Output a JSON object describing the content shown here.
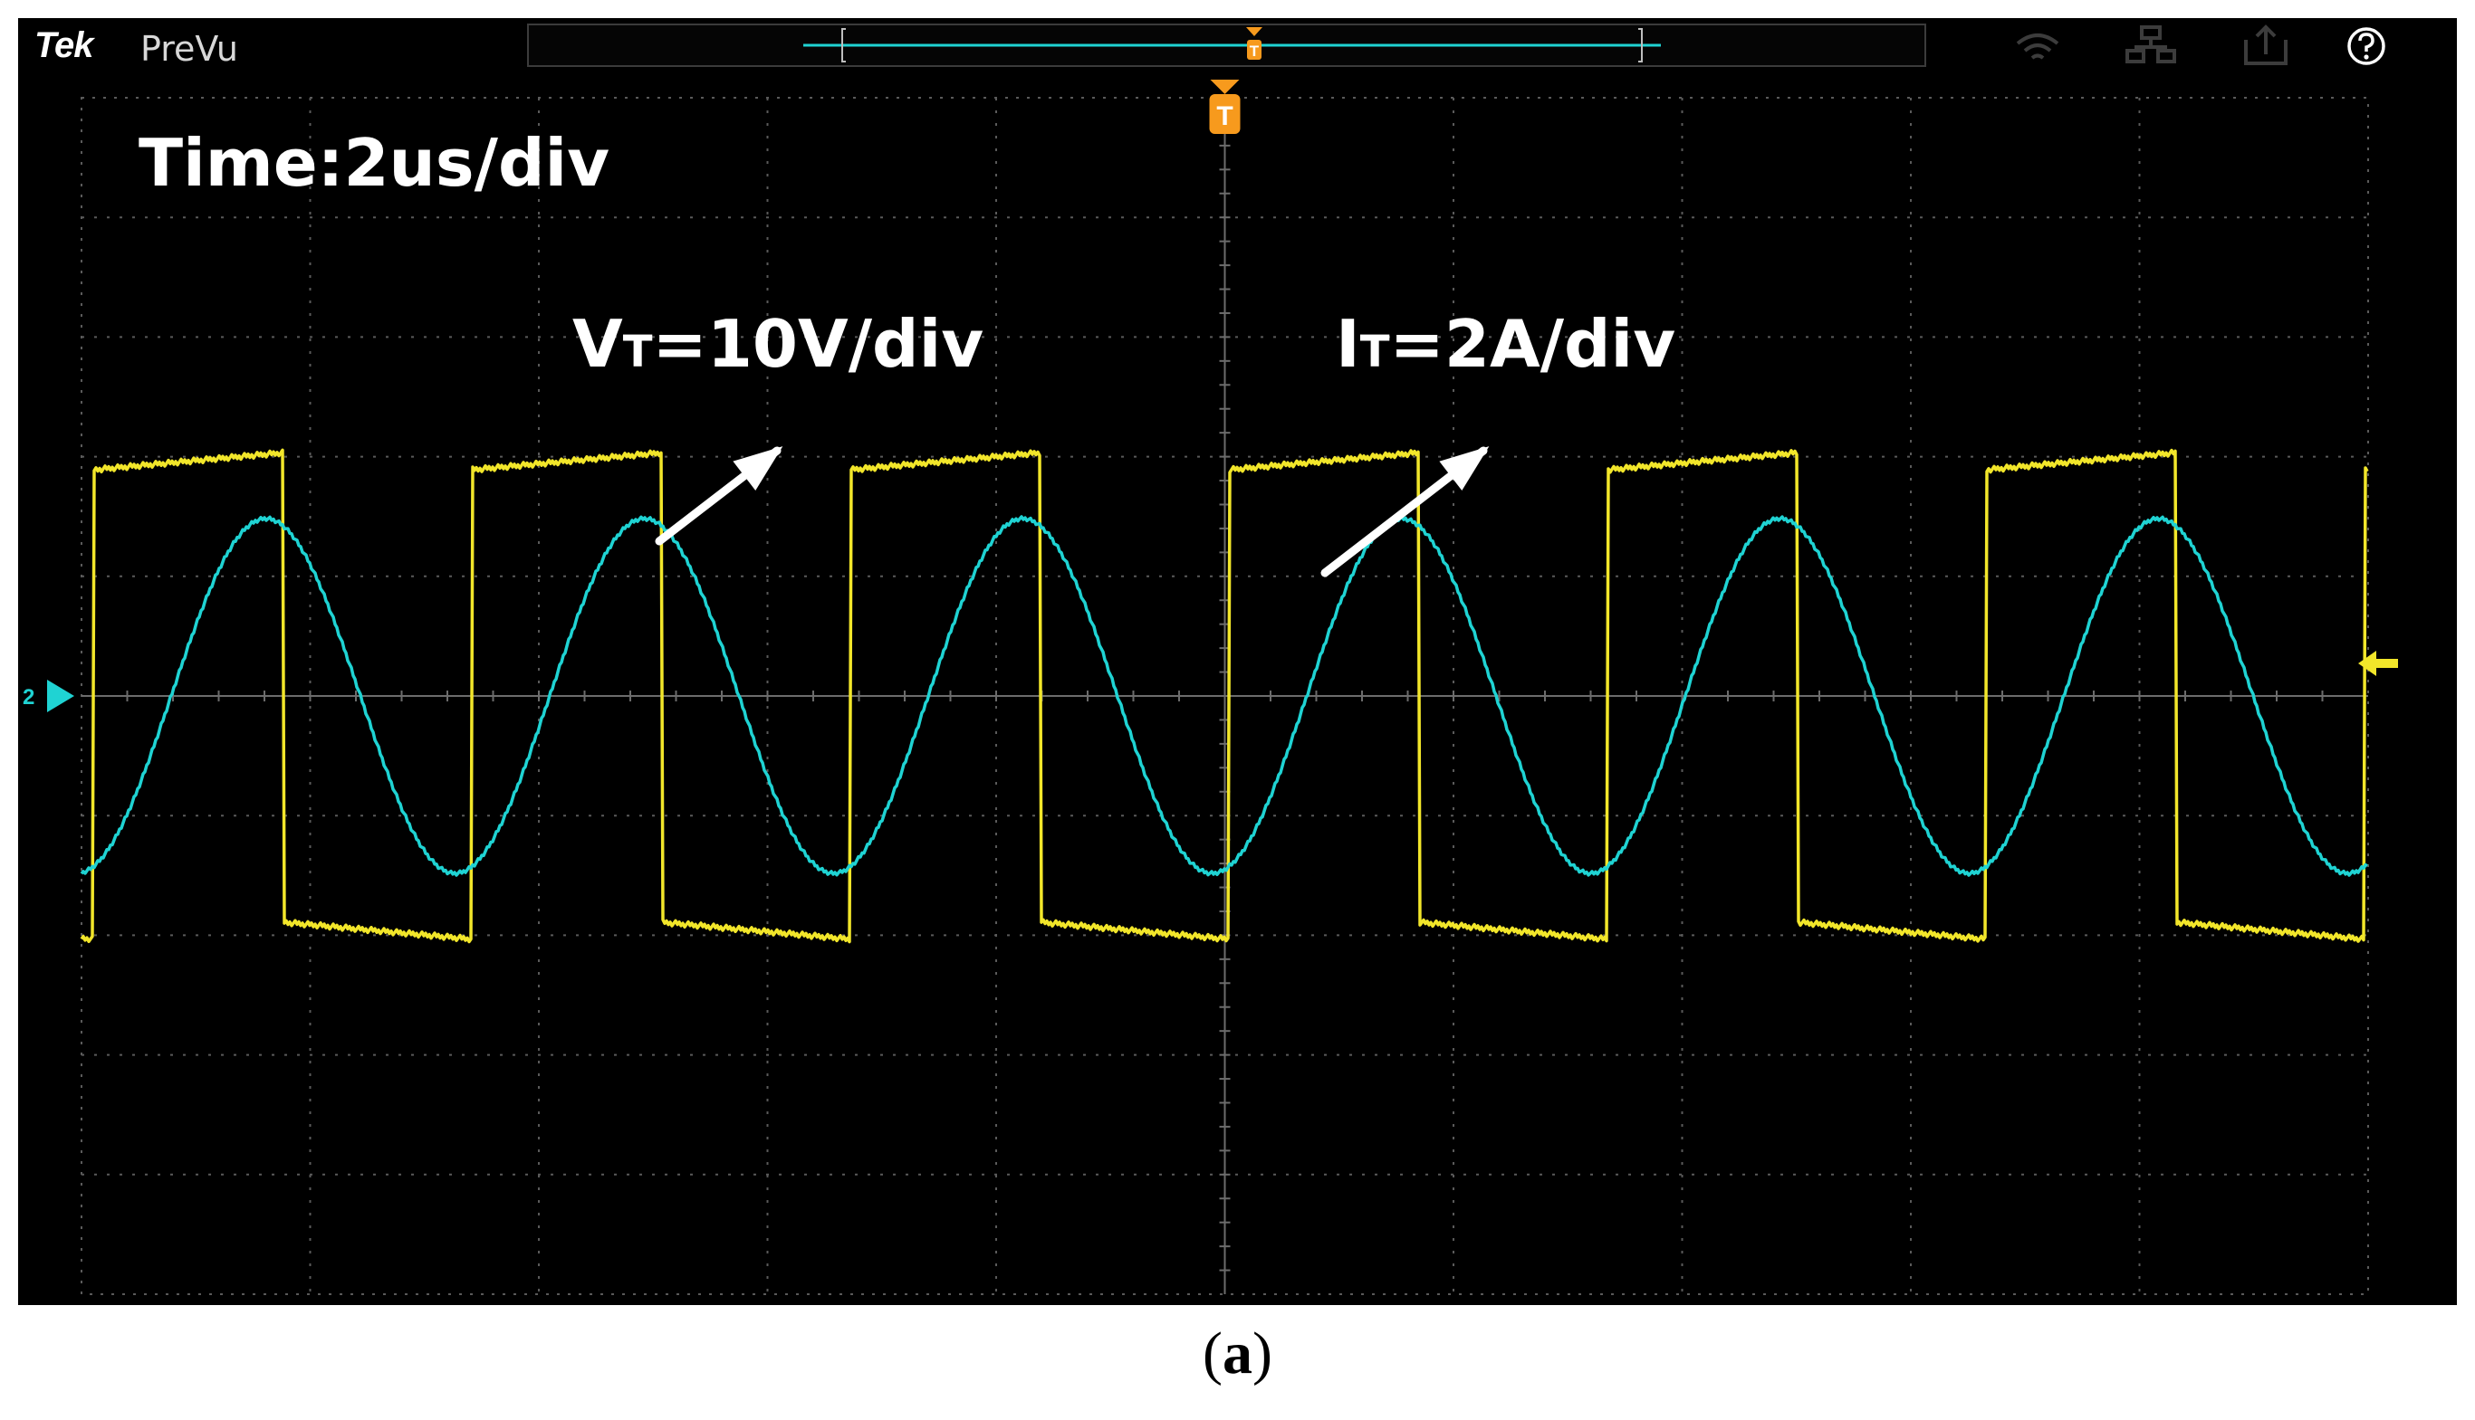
{
  "header": {
    "logo": "Tek",
    "mode": "PreVu",
    "overview_trigger_marker": "T",
    "icons": [
      "wifi-icon",
      "network-icon",
      "export-icon",
      "help-icon"
    ]
  },
  "display": {
    "time_scale": "Time:2us/div",
    "voltage_label": {
      "main": "V",
      "sub": "T",
      "rest": "=10V/div"
    },
    "current_label": {
      "main": "I",
      "sub": "T",
      "rest": "=2A/div"
    },
    "trigger_marker": "T",
    "channel_marker": "2",
    "colors": {
      "voltage": "#f2e62a",
      "current": "#1fd3d3",
      "trigger": "#f79a1d",
      "grid": "#5a5a5a",
      "background": "#000000"
    }
  },
  "caption": {
    "open": "(",
    "letter": "a",
    "close": ")"
  }
}
